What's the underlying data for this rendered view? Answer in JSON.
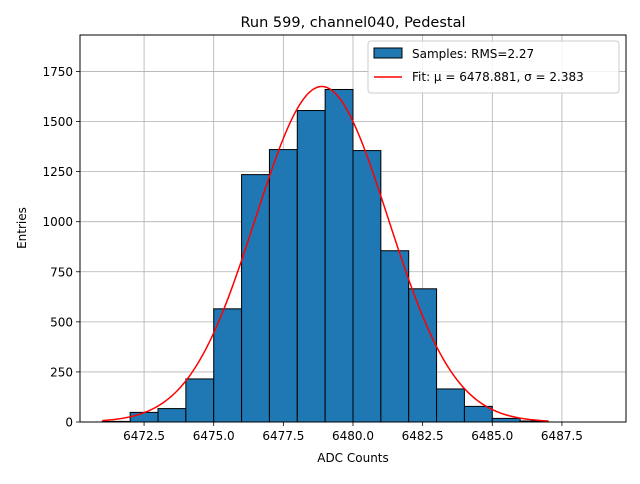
{
  "chart_data": {
    "type": "bar",
    "title": "Run 599, channel040, Pedestal",
    "xlabel": "ADC Counts",
    "ylabel": "Entries",
    "xlim": [
      6470.2,
      6489.8
    ],
    "ylim": [
      0,
      1932
    ],
    "x_ticks": [
      6472.5,
      6475.0,
      6477.5,
      6480.0,
      6482.5,
      6485.0,
      6487.5
    ],
    "x_tick_labels": [
      "6472.5",
      "6475.0",
      "6477.5",
      "6480.0",
      "6482.5",
      "6485.0",
      "6487.5"
    ],
    "y_ticks": [
      0,
      250,
      500,
      750,
      1000,
      1250,
      1500,
      1750
    ],
    "y_tick_labels": [
      "0",
      "250",
      "500",
      "750",
      "1000",
      "1250",
      "1500",
      "1750"
    ],
    "grid": true,
    "legend_position": "upper right",
    "bin_edges": [
      6471,
      6472,
      6473,
      6474,
      6475,
      6476,
      6477,
      6478,
      6479,
      6480,
      6481,
      6482,
      6483,
      6484,
      6485,
      6486,
      6487,
      6488,
      6489
    ],
    "series": [
      {
        "name": "Samples: RMS=2.27",
        "kind": "histogram",
        "color": "#1f77b4",
        "edgecolor": "#000000",
        "values": [
          3,
          48,
          67,
          215,
          565,
          1235,
          1360,
          1555,
          1660,
          1355,
          855,
          665,
          165,
          78,
          18,
          5,
          0,
          0
        ]
      },
      {
        "name": "Fit: μ = 6478.881, σ = 2.383",
        "kind": "gaussian",
        "color": "#ff0000",
        "mu": 6478.881,
        "sigma": 2.383,
        "amplitude": 1675,
        "x_range": [
          6471,
          6487
        ]
      }
    ]
  }
}
